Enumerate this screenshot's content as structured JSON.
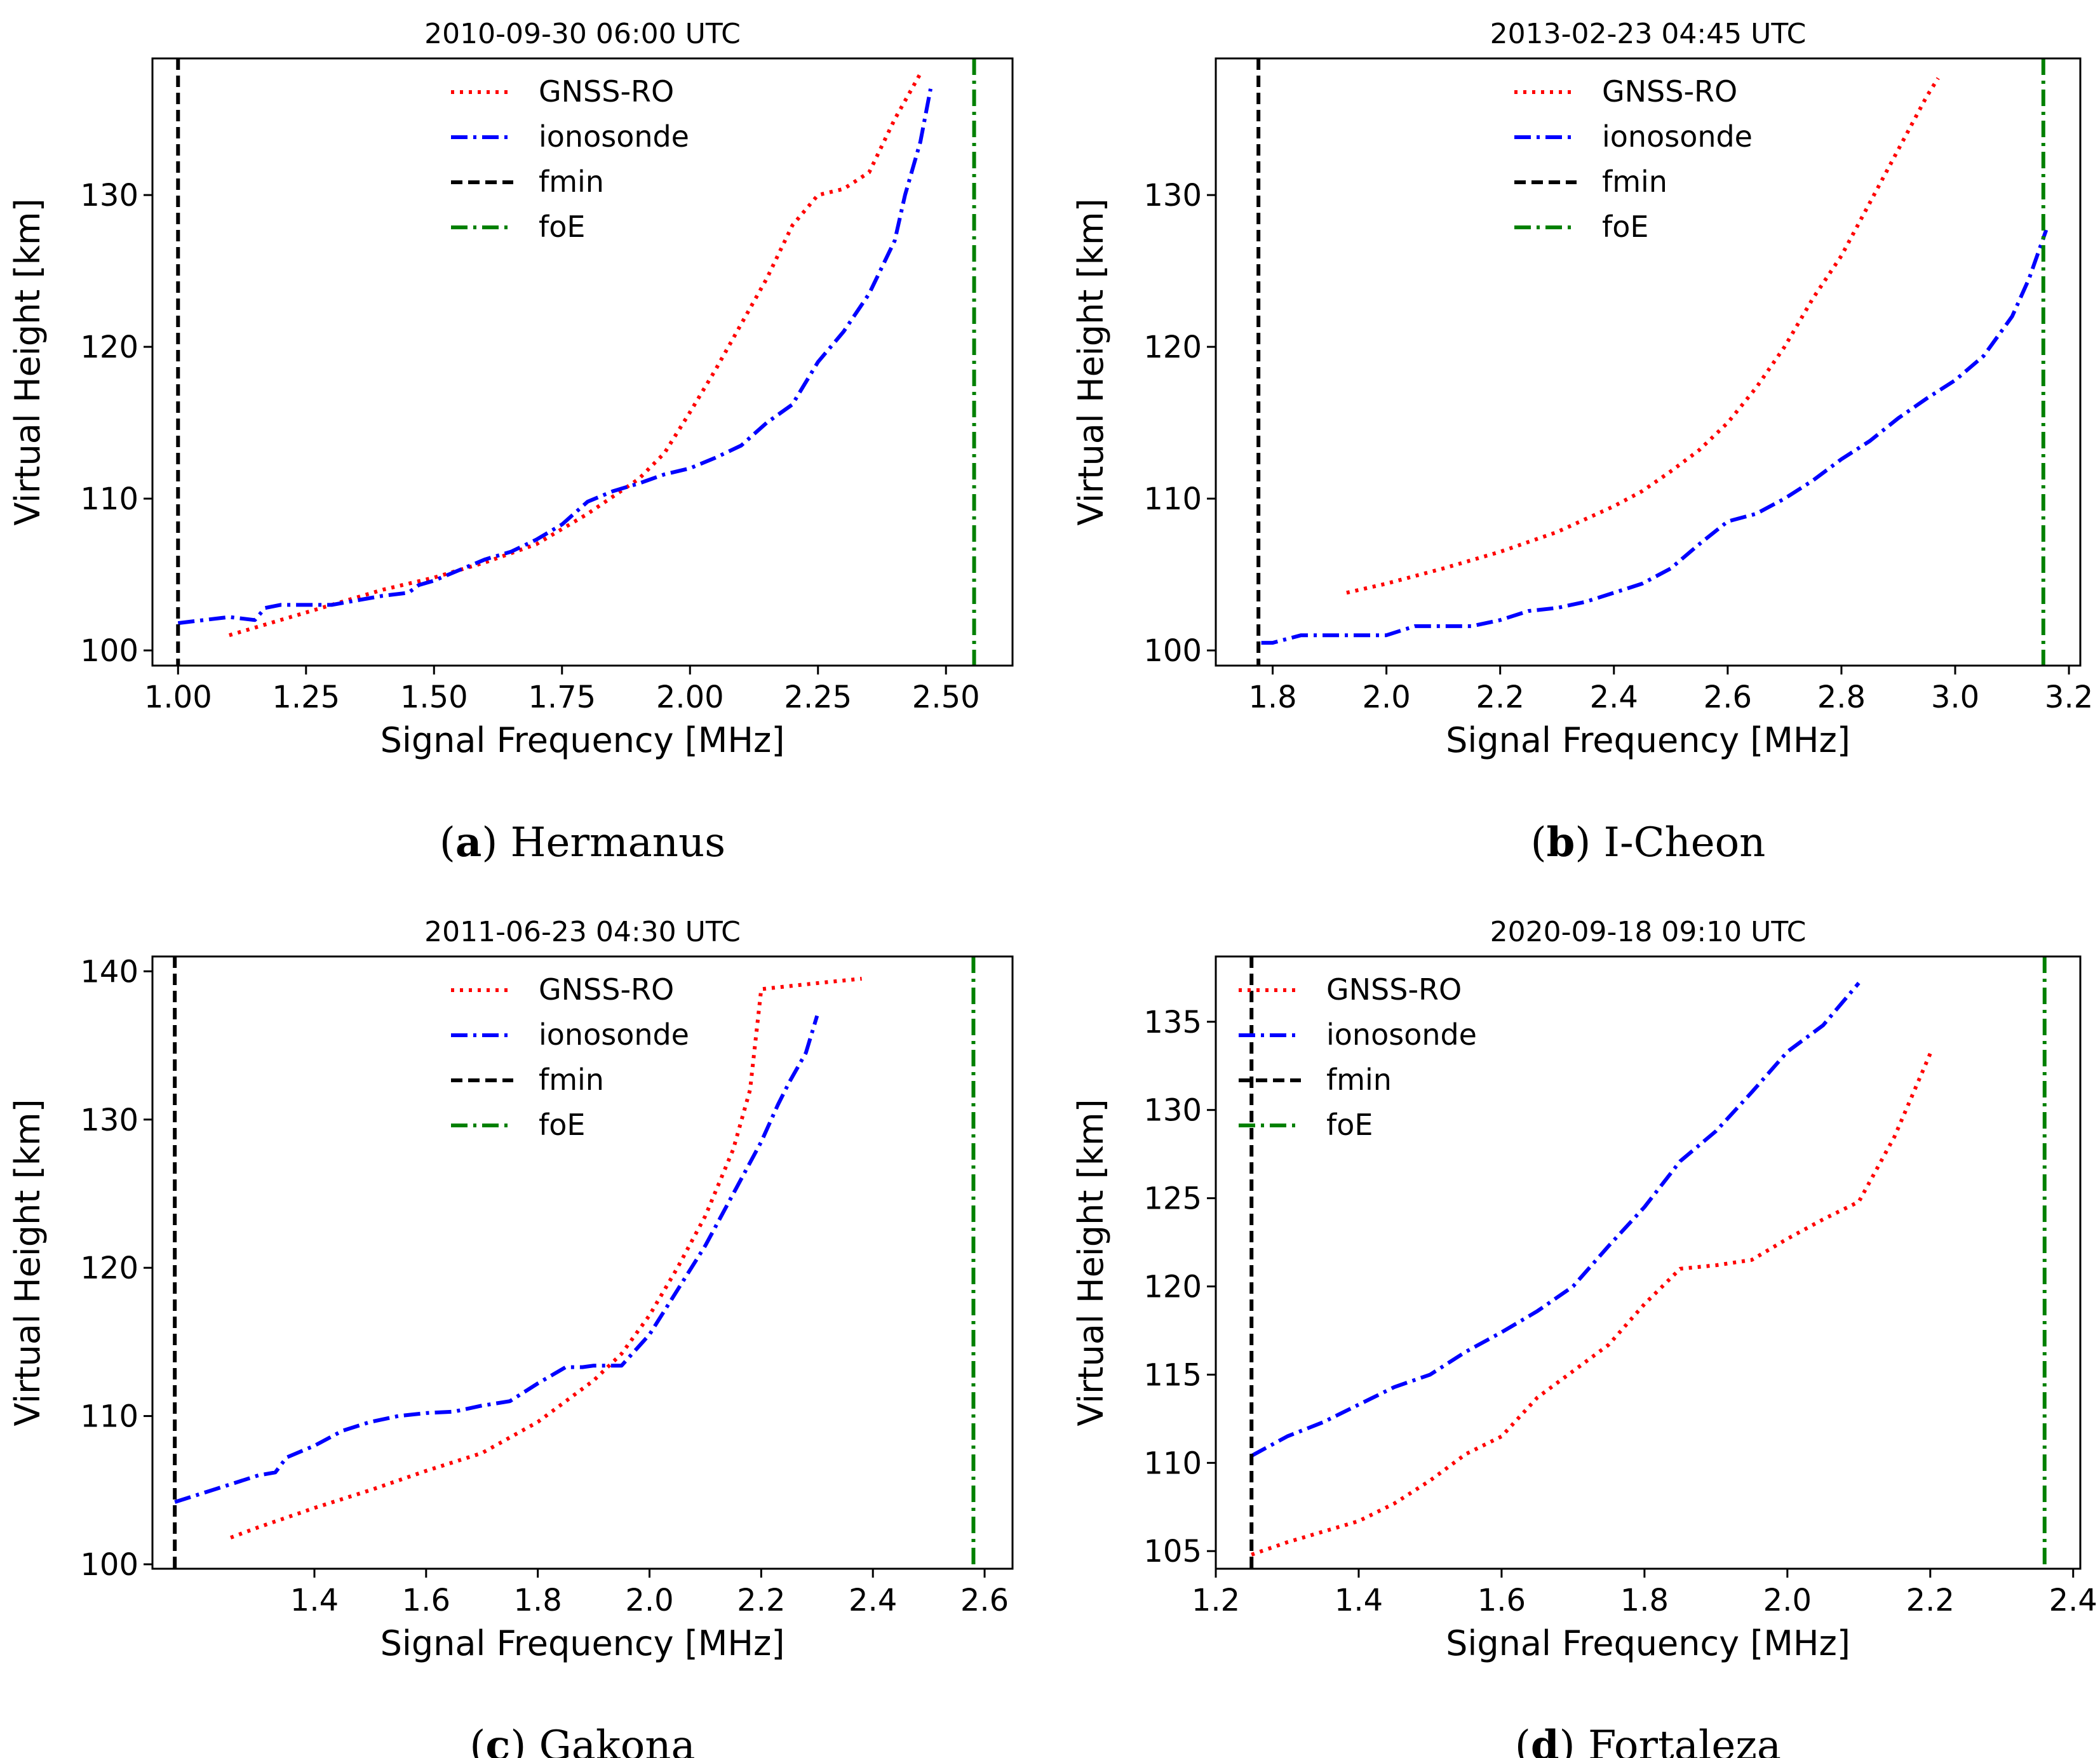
{
  "chart_data": [
    {
      "type": "line",
      "title": "2010-09-30 06:00 UTC",
      "caption_letter": "a",
      "caption_text": "Hermanus",
      "xlabel": "Signal Frequency [MHz]",
      "ylabel": "Virtual Height [km]",
      "xlim": [
        0.95,
        2.63
      ],
      "ylim": [
        99,
        139
      ],
      "xticks": [
        1.0,
        1.25,
        1.5,
        1.75,
        2.0,
        2.25,
        2.5
      ],
      "xticklabels": [
        "1.00",
        "1.25",
        "1.50",
        "1.75",
        "2.00",
        "2.25",
        "2.50"
      ],
      "yticks": [
        100,
        110,
        120,
        130
      ],
      "yticklabels": [
        "100",
        "110",
        "120",
        "130"
      ],
      "legend_position": "top-center",
      "series": [
        {
          "name": "GNSS-RO",
          "color": "#ff0000",
          "style": "dotted",
          "x": [
            1.1,
            1.2,
            1.3,
            1.4,
            1.5,
            1.6,
            1.7,
            1.8,
            1.9,
            1.95,
            2.0,
            2.05,
            2.1,
            2.15,
            2.2,
            2.25,
            2.3,
            2.35,
            2.4,
            2.45
          ],
          "y": [
            101.0,
            102.0,
            103.0,
            104.0,
            104.8,
            105.8,
            107.0,
            109.0,
            111.3,
            113.0,
            115.7,
            118.5,
            121.5,
            124.5,
            128.0,
            130.0,
            130.4,
            131.5,
            135.0,
            138.0
          ]
        },
        {
          "name": "ionosonde",
          "color": "#0000ff",
          "style": "dashdot",
          "x": [
            1.0,
            1.05,
            1.1,
            1.15,
            1.17,
            1.2,
            1.3,
            1.35,
            1.4,
            1.45,
            1.47,
            1.5,
            1.55,
            1.6,
            1.65,
            1.7,
            1.75,
            1.8,
            1.85,
            1.9,
            1.95,
            2.0,
            2.05,
            2.1,
            2.15,
            2.2,
            2.25,
            2.3,
            2.35,
            2.4,
            2.42,
            2.45,
            2.47
          ],
          "y": [
            101.8,
            102.0,
            102.2,
            102.0,
            102.8,
            103.0,
            103.0,
            103.3,
            103.6,
            103.8,
            104.3,
            104.6,
            105.3,
            106.0,
            106.5,
            107.3,
            108.3,
            109.8,
            110.5,
            111.0,
            111.6,
            112.0,
            112.7,
            113.5,
            115.0,
            116.2,
            119.0,
            121.0,
            123.5,
            127.0,
            130.0,
            133.5,
            137.0
          ]
        }
      ],
      "vlines": [
        {
          "name": "fmin",
          "x": 1.0,
          "color": "#000000",
          "style": "dashed"
        },
        {
          "name": "foE",
          "x": 2.555,
          "color": "#008000",
          "style": "dashdot"
        }
      ]
    },
    {
      "type": "line",
      "title": "2013-02-23 04:45 UTC",
      "caption_letter": "b",
      "caption_text": "I-Cheon",
      "xlabel": "Signal Frequency [MHz]",
      "ylabel": "Virtual Height [km]",
      "xlim": [
        1.7,
        3.22
      ],
      "ylim": [
        99,
        139
      ],
      "xticks": [
        1.8,
        2.0,
        2.2,
        2.4,
        2.6,
        2.8,
        3.0,
        3.2
      ],
      "xticklabels": [
        "1.8",
        "2.0",
        "2.2",
        "2.4",
        "2.6",
        "2.8",
        "3.0",
        "3.2"
      ],
      "yticks": [
        100,
        110,
        120,
        130
      ],
      "yticklabels": [
        "100",
        "110",
        "120",
        "130"
      ],
      "legend_position": "top-center",
      "series": [
        {
          "name": "GNSS-RO",
          "color": "#ff0000",
          "style": "dotted",
          "x": [
            1.93,
            2.0,
            2.1,
            2.2,
            2.3,
            2.4,
            2.45,
            2.5,
            2.55,
            2.6,
            2.65,
            2.7,
            2.75,
            2.8,
            2.85,
            2.9,
            2.95,
            2.97
          ],
          "y": [
            103.8,
            104.4,
            105.4,
            106.5,
            107.8,
            109.5,
            110.5,
            111.8,
            113.2,
            115.0,
            117.3,
            120.0,
            123.2,
            126.0,
            129.5,
            133.0,
            136.5,
            137.7
          ]
        },
        {
          "name": "ionosonde",
          "color": "#0000ff",
          "style": "dashdot",
          "x": [
            1.78,
            1.8,
            1.85,
            1.9,
            2.0,
            2.05,
            2.1,
            2.15,
            2.2,
            2.25,
            2.3,
            2.35,
            2.4,
            2.45,
            2.5,
            2.55,
            2.6,
            2.65,
            2.7,
            2.75,
            2.8,
            2.85,
            2.9,
            2.95,
            3.0,
            3.05,
            3.1,
            3.13,
            3.16
          ],
          "y": [
            100.5,
            100.5,
            101.0,
            101.0,
            101.0,
            101.6,
            101.6,
            101.6,
            102.0,
            102.6,
            102.8,
            103.2,
            103.8,
            104.4,
            105.4,
            107.0,
            108.5,
            109.0,
            110.0,
            111.2,
            112.6,
            113.8,
            115.3,
            116.6,
            117.8,
            119.4,
            122.0,
            124.5,
            127.7
          ]
        }
      ],
      "vlines": [
        {
          "name": "fmin",
          "x": 1.775,
          "color": "#000000",
          "style": "dashed"
        },
        {
          "name": "foE",
          "x": 3.155,
          "color": "#008000",
          "style": "dashdot"
        }
      ]
    },
    {
      "type": "line",
      "title": "2011-06-23 04:30 UTC",
      "caption_letter": "c",
      "caption_text": "Gakona",
      "xlabel": "Signal Frequency [MHz]",
      "ylabel": "Virtual Height [km]",
      "xlim": [
        1.11,
        2.65
      ],
      "ylim": [
        99.7,
        141.0
      ],
      "xticks": [
        1.4,
        1.6,
        1.8,
        2.0,
        2.2,
        2.4,
        2.6
      ],
      "xticklabels": [
        "1.4",
        "1.6",
        "1.8",
        "2.0",
        "2.2",
        "2.4",
        "2.6"
      ],
      "yticks": [
        100,
        110,
        120,
        130,
        140
      ],
      "yticklabels": [
        "100",
        "110",
        "120",
        "130",
        "140"
      ],
      "legend_position": "top-center",
      "series": [
        {
          "name": "GNSS-RO",
          "color": "#ff0000",
          "style": "dotted",
          "x": [
            1.25,
            1.3,
            1.4,
            1.5,
            1.6,
            1.7,
            1.8,
            1.9,
            1.95,
            2.0,
            2.05,
            2.1,
            2.15,
            2.18,
            2.2,
            2.3,
            2.38
          ],
          "y": [
            101.8,
            102.5,
            103.8,
            105.0,
            106.3,
            107.5,
            109.6,
            112.4,
            114.2,
            116.8,
            120.0,
            123.5,
            128.0,
            132.0,
            138.8,
            139.2,
            139.5
          ]
        },
        {
          "name": "ionosonde",
          "color": "#0000ff",
          "style": "dashdot",
          "x": [
            1.15,
            1.2,
            1.25,
            1.3,
            1.33,
            1.35,
            1.4,
            1.45,
            1.5,
            1.55,
            1.6,
            1.65,
            1.7,
            1.75,
            1.8,
            1.85,
            1.88,
            1.9,
            1.95,
            2.0,
            2.05,
            2.1,
            2.15,
            2.2,
            2.23,
            2.25,
            2.28,
            2.3
          ],
          "y": [
            104.2,
            104.8,
            105.4,
            106.0,
            106.2,
            107.2,
            108.0,
            109.0,
            109.6,
            110.0,
            110.2,
            110.3,
            110.7,
            111.0,
            112.2,
            113.3,
            113.3,
            113.4,
            113.4,
            115.5,
            118.5,
            121.5,
            125.0,
            128.5,
            131.0,
            132.5,
            134.5,
            137.0
          ]
        }
      ],
      "vlines": [
        {
          "name": "fmin",
          "x": 1.15,
          "color": "#000000",
          "style": "dashed"
        },
        {
          "name": "foE",
          "x": 2.58,
          "color": "#008000",
          "style": "dashdot"
        }
      ]
    },
    {
      "type": "line",
      "title": "2020-09-18 09:10 UTC",
      "caption_letter": "d",
      "caption_text": "Fortaleza",
      "xlabel": "Signal Frequency [MHz]",
      "ylabel": "Virtual Height [km]",
      "xlim": [
        1.2,
        2.41
      ],
      "ylim": [
        104.0,
        138.7
      ],
      "xticks": [
        1.2,
        1.4,
        1.6,
        1.8,
        2.0,
        2.2,
        2.4
      ],
      "xticklabels": [
        "1.2",
        "1.4",
        "1.6",
        "1.8",
        "2.0",
        "2.2",
        "2.4"
      ],
      "yticks": [
        105,
        110,
        115,
        120,
        125,
        130,
        135
      ],
      "yticklabels": [
        "105",
        "110",
        "115",
        "120",
        "125",
        "130",
        "135"
      ],
      "legend_position": "top-left",
      "series": [
        {
          "name": "GNSS-RO",
          "color": "#ff0000",
          "style": "dotted",
          "x": [
            1.25,
            1.3,
            1.4,
            1.45,
            1.5,
            1.55,
            1.6,
            1.65,
            1.7,
            1.75,
            1.8,
            1.85,
            1.9,
            1.95,
            2.0,
            2.05,
            2.1,
            2.15,
            2.2
          ],
          "y": [
            104.8,
            105.5,
            106.7,
            107.7,
            109.0,
            110.5,
            111.5,
            113.7,
            115.2,
            116.7,
            119.0,
            121.0,
            121.2,
            121.5,
            122.7,
            123.8,
            124.8,
            128.5,
            133.2
          ]
        },
        {
          "name": "ionosonde",
          "color": "#0000ff",
          "style": "dashdot",
          "x": [
            1.25,
            1.3,
            1.35,
            1.4,
            1.45,
            1.5,
            1.55,
            1.6,
            1.65,
            1.7,
            1.75,
            1.8,
            1.85,
            1.9,
            1.95,
            2.0,
            2.05,
            2.1
          ],
          "y": [
            110.4,
            111.5,
            112.3,
            113.3,
            114.3,
            115.0,
            116.3,
            117.4,
            118.6,
            120.0,
            122.3,
            124.5,
            127.1,
            128.8,
            131.0,
            133.3,
            134.8,
            137.2
          ]
        }
      ],
      "vlines": [
        {
          "name": "fmin",
          "x": 1.25,
          "color": "#000000",
          "style": "dashed"
        },
        {
          "name": "foE",
          "x": 2.36,
          "color": "#008000",
          "style": "dashdot"
        }
      ]
    }
  ]
}
